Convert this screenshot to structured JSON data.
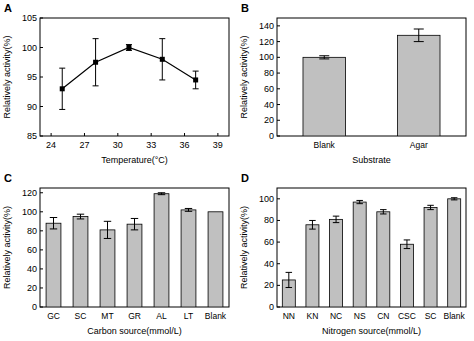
{
  "chart_data": [
    {
      "type": "line",
      "title": "A",
      "x_label": "Temperature(°C)",
      "y_label": "Relatively activity(%)",
      "x": [
        25,
        28,
        31,
        34,
        37
      ],
      "values": [
        93,
        97.5,
        100,
        98,
        94.5
      ],
      "errors": [
        3.5,
        4,
        0.5,
        3.5,
        1.5
      ],
      "color": "#000000",
      "marker": "square",
      "xlim": [
        23,
        40
      ],
      "xticks": [
        24,
        27,
        30,
        33,
        36,
        39
      ],
      "ylim": [
        85,
        105
      ],
      "yticks": [
        85,
        90,
        95,
        100,
        105
      ],
      "grid": false
    },
    {
      "type": "bar",
      "title": "B",
      "x_label": "Substrate",
      "y_label": "Relatively activity(%)",
      "categories": [
        "Blank",
        "Agar"
      ],
      "values": [
        100,
        128
      ],
      "errors": [
        2,
        8
      ],
      "color": "#c0c0c0",
      "ylim": [
        0,
        150
      ],
      "yticks": [
        0,
        20,
        40,
        60,
        80,
        100,
        120,
        140
      ],
      "grid": false
    },
    {
      "type": "bar",
      "title": "C",
      "x_label": "Carbon source(mmol/L)",
      "y_label": "Relatively activity(%)",
      "categories": [
        "GC",
        "SC",
        "MT",
        "GR",
        "AL",
        "LT",
        "Blank"
      ],
      "values": [
        88,
        95,
        81,
        87,
        119,
        102,
        100
      ],
      "errors": [
        6,
        2.5,
        9,
        6,
        1,
        1.5,
        0
      ],
      "color": "#c0c0c0",
      "ylim": [
        0,
        125
      ],
      "yticks": [
        0,
        20,
        40,
        60,
        80,
        100,
        120
      ],
      "grid": false
    },
    {
      "type": "bar",
      "title": "D",
      "x_label": "Nitrogen source(mmol/L)",
      "y_label": "Relatively activity(%)",
      "categories": [
        "NN",
        "KN",
        "NC",
        "NS",
        "CN",
        "CSC",
        "SC",
        "Blank"
      ],
      "values": [
        25,
        76,
        81,
        97,
        88,
        58,
        92,
        100
      ],
      "errors": [
        7,
        4,
        3,
        1.5,
        2,
        4,
        2,
        1
      ],
      "color": "#c0c0c0",
      "ylim": [
        0,
        110
      ],
      "yticks": [
        0,
        20,
        40,
        60,
        80,
        100
      ],
      "grid": false
    }
  ]
}
